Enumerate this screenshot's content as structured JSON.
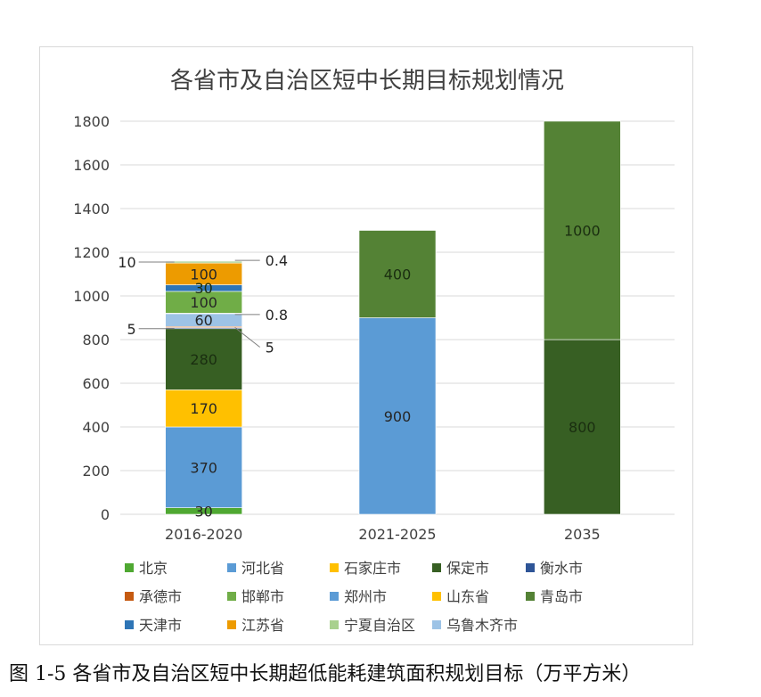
{
  "caption": "图 1-5 各省市及自治区短中长期超低能耗建筑面积规划目标（万平方米）",
  "colors": {
    "北京": "#4fa832",
    "河北省": "#5b9bd5",
    "石家庄市": "#ffc000",
    "保定市": "#375f23",
    "衡水市": "#2e5597",
    "承德市": "#c55a11",
    "邯郸市": "#70ad47",
    "郑州市": "#5b9bd5",
    "山东省": "#ffc000",
    "青岛市": "#548235",
    "天津市": "#2e75b6",
    "江苏省": "#ed9b00",
    "宁夏自治区": "#a9d18e",
    "乌鲁木齐市": "#9dc3e6"
  },
  "chart_data": {
    "type": "bar",
    "stacked": true,
    "title": "各省市及自治区短中长期目标规划情况",
    "categories": [
      "2016-2020",
      "2021-2025",
      "2035"
    ],
    "y_ticks": [
      "0",
      "200",
      "400",
      "600",
      "800",
      "1000",
      "1200",
      "1400",
      "1600",
      "1800"
    ],
    "ylim": [
      0,
      1800
    ],
    "grid": true,
    "legend_position": "bottom",
    "series": [
      {
        "name": "北京",
        "values": [
          30,
          null,
          null
        ],
        "labels": [
          "30",
          "",
          ""
        ],
        "colors": [
          "#4fa832",
          null,
          null
        ]
      },
      {
        "name": "河北省",
        "values": [
          370,
          900,
          800
        ],
        "labels": [
          "370",
          "900",
          "800"
        ],
        "colors": [
          "#5b9bd5",
          "#5b9bd5",
          "#375f23"
        ]
      },
      {
        "name": "石家庄市",
        "values": [
          170,
          400,
          1000
        ],
        "labels": [
          "170",
          "400",
          "1000"
        ],
        "colors": [
          "#ffc000",
          "#548235",
          "#548235"
        ]
      },
      {
        "name": "保定市",
        "values": [
          280,
          null,
          null
        ],
        "labels": [
          "280",
          "",
          ""
        ],
        "colors": [
          "#375f23",
          null,
          null
        ]
      },
      {
        "name": "衡水市",
        "values": [
          5,
          null,
          null
        ],
        "labels": [
          "",
          "",
          ""
        ],
        "colors": [
          "#2e5597",
          null,
          null
        ]
      },
      {
        "name": "承德市",
        "values": [
          5,
          null,
          null
        ],
        "labels": [
          "",
          "",
          ""
        ],
        "colors": [
          "#c55a11",
          null,
          null
        ]
      },
      {
        "name": "邯郸市",
        "values": [
          60,
          null,
          null
        ],
        "labels": [
          "60",
          "",
          ""
        ],
        "colors": [
          "#9dc3e6",
          null,
          null
        ]
      },
      {
        "name": "郑州市",
        "values": [
          0.8,
          null,
          null
        ],
        "labels": [
          "",
          "",
          ""
        ],
        "colors": [
          "#5b9bd5",
          null,
          null
        ]
      },
      {
        "name": "山东省",
        "values": [
          100,
          null,
          null
        ],
        "labels": [
          "100",
          "",
          ""
        ],
        "colors": [
          "#70ad47",
          null,
          null
        ]
      },
      {
        "name": "青岛市",
        "values": [
          30,
          null,
          null
        ],
        "labels": [
          "30",
          "",
          ""
        ],
        "colors": [
          "#2e75b6",
          null,
          null
        ]
      },
      {
        "name": "天津市",
        "values": [
          100,
          null,
          null
        ],
        "labels": [
          "100",
          "",
          ""
        ],
        "colors": [
          "#ed9b00",
          null,
          null
        ]
      },
      {
        "name": "江苏省",
        "values": [
          10,
          null,
          null
        ],
        "labels": [
          "",
          "",
          ""
        ],
        "colors": [
          "#a9d18e",
          null,
          null
        ]
      },
      {
        "name": "宁夏自治区",
        "values": [
          0.4,
          null,
          null
        ],
        "labels": [
          "",
          "",
          ""
        ],
        "colors": [
          "#9dc3e6",
          null,
          null
        ]
      },
      {
        "name": "乌鲁木齐市",
        "values": [
          null,
          null,
          null
        ],
        "labels": [
          "",
          "",
          ""
        ],
        "colors": [
          null,
          null,
          null
        ]
      }
    ],
    "callouts": [
      {
        "label": "10",
        "value": 1155,
        "side": "left"
      },
      {
        "label": "5",
        "value": 850,
        "side": "left"
      },
      {
        "label": "0.4",
        "value": 1163,
        "side": "right"
      },
      {
        "label": "0.8",
        "value": 915,
        "side": "right"
      },
      {
        "label": "5",
        "value": 855,
        "side": "right"
      }
    ],
    "legend": [
      "北京",
      "河北省",
      "石家庄市",
      "保定市",
      "衡水市",
      "承德市",
      "邯郸市",
      "郑州市",
      "山东省",
      "青岛市",
      "天津市",
      "江苏省",
      "宁夏自治区",
      "乌鲁木齐市"
    ]
  }
}
